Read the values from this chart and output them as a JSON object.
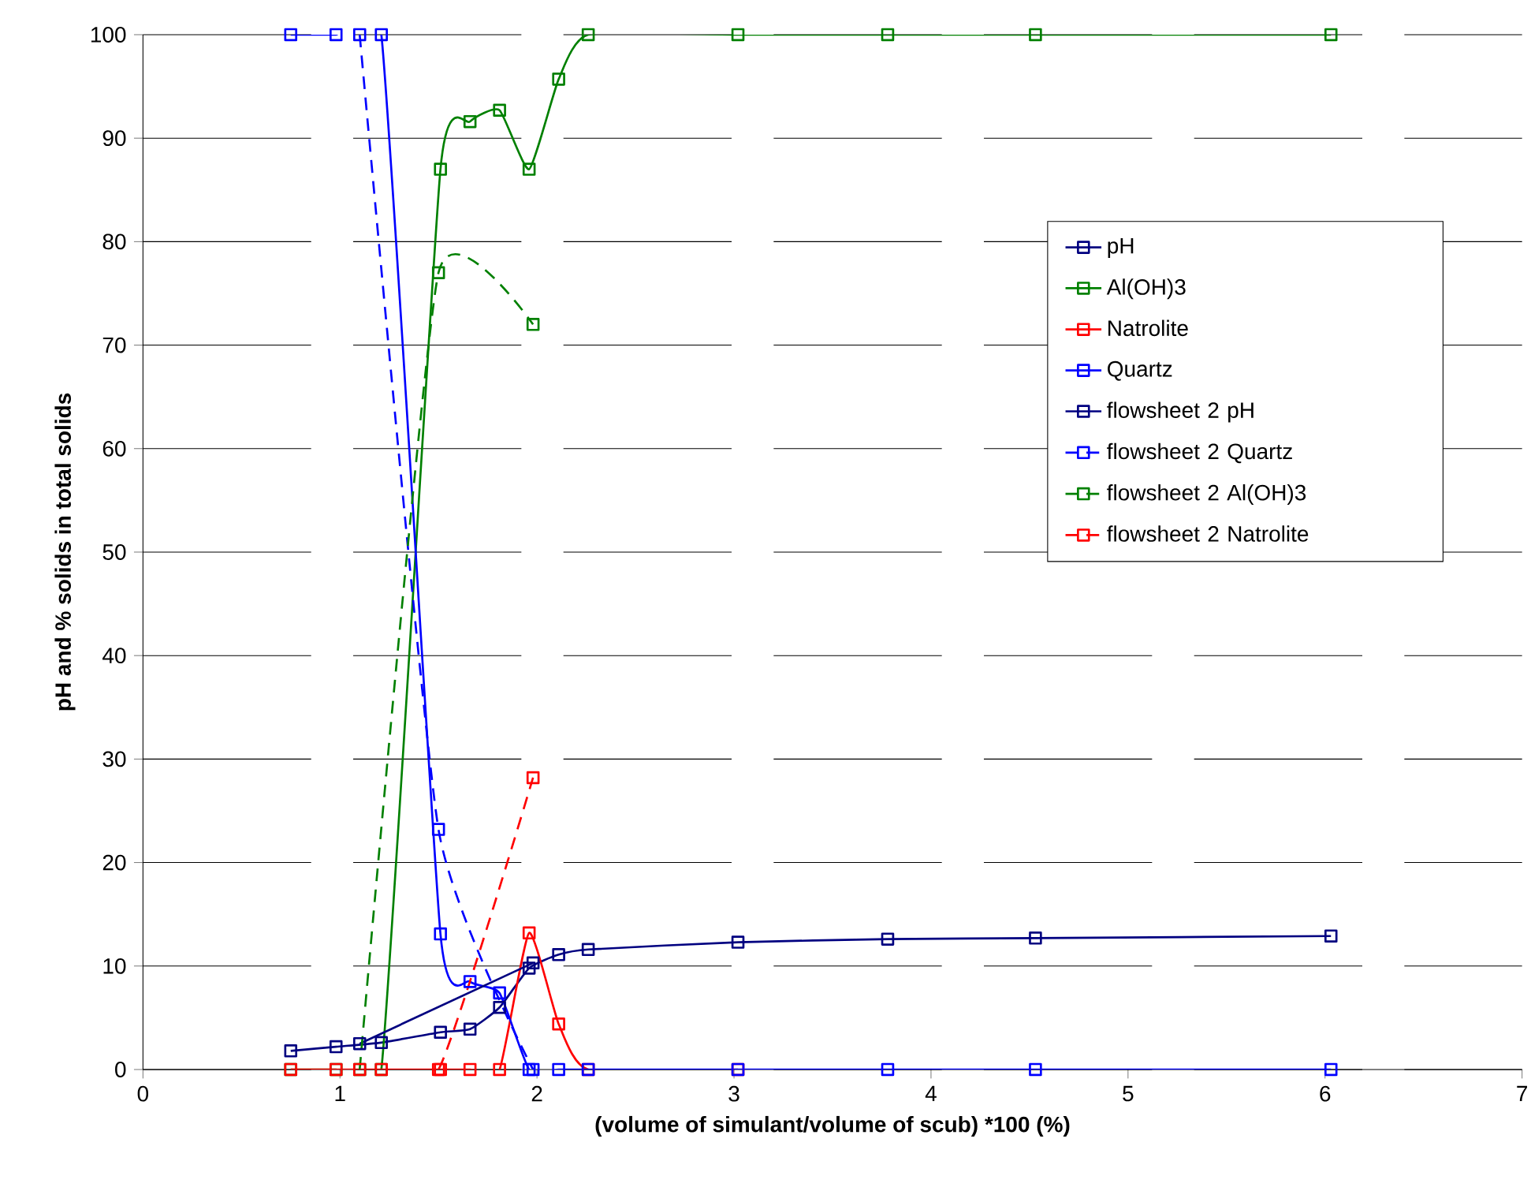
{
  "chart_data": {
    "type": "line",
    "xlabel": "(volume of simulant/volume of scub) *100 (%)",
    "ylabel": "pH and % solids in total solids",
    "xlim": [
      0,
      7
    ],
    "xticks": [
      0,
      1,
      2,
      3,
      4,
      5,
      6,
      7
    ],
    "ylim": [
      0,
      100
    ],
    "yticks": [
      0,
      10,
      20,
      30,
      40,
      50,
      60,
      70,
      80,
      90,
      100
    ],
    "grid": "y",
    "legend": "right",
    "marker": "square",
    "series": [
      {
        "name": "pH",
        "color": "#000080",
        "line_style": "solid",
        "x": [
          0.75,
          0.98,
          1.21,
          1.51,
          1.66,
          1.81,
          1.96,
          2.11,
          2.26,
          3.02,
          3.78,
          4.53,
          6.03
        ],
        "values": [
          1.8,
          2.2,
          2.6,
          3.6,
          3.9,
          6.0,
          9.8,
          11.1,
          11.6,
          12.3,
          12.6,
          12.7,
          12.9
        ]
      },
      {
        "name": "Al(OH)3",
        "color": "#008000",
        "line_style": "solid",
        "x": [
          0.75,
          0.98,
          1.21,
          1.51,
          1.66,
          1.81,
          1.96,
          2.11,
          2.26,
          3.02,
          3.78,
          4.53,
          6.03
        ],
        "values": [
          0,
          0,
          0,
          87,
          91.6,
          92.7,
          87,
          95.7,
          100,
          100,
          100,
          100,
          100
        ]
      },
      {
        "name": "Natrolite",
        "color": "#ff0000",
        "line_style": "solid",
        "x": [
          0.75,
          0.98,
          1.21,
          1.51,
          1.66,
          1.81,
          1.96,
          2.11,
          2.26,
          3.02
        ],
        "values": [
          0,
          0,
          0,
          0,
          0,
          0,
          13.2,
          4.4,
          0,
          0
        ]
      },
      {
        "name": "Quartz",
        "color": "#0000ff",
        "line_style": "solid",
        "x": [
          0.75,
          0.98,
          1.21,
          1.51,
          1.66,
          1.81,
          1.96,
          2.11,
          2.26,
          3.02,
          3.78,
          4.53,
          6.03
        ],
        "values": [
          100,
          100,
          100,
          13.1,
          8.5,
          7.4,
          0,
          0,
          0,
          0,
          0,
          0,
          0
        ]
      },
      {
        "name": "flowsheet 2 pH",
        "color": "#000080",
        "line_style": "solid",
        "x": [
          1.1,
          1.98
        ],
        "values": [
          2.5,
          10.3
        ]
      },
      {
        "name": "flowsheet 2 Quartz",
        "color": "#0000ff",
        "line_style": "dashed",
        "x": [
          1.1,
          1.5,
          1.98
        ],
        "values": [
          100,
          23.2,
          0
        ]
      },
      {
        "name": "flowsheet 2 Al(OH)3",
        "color": "#008000",
        "line_style": "dashed",
        "x": [
          1.1,
          1.5,
          1.98
        ],
        "values": [
          0,
          77,
          72
        ]
      },
      {
        "name": "flowsheet 2 Natrolite",
        "color": "#ff0000",
        "line_style": "dashed",
        "x": [
          1.1,
          1.5,
          1.98
        ],
        "values": [
          0,
          0,
          28.2
        ]
      }
    ]
  }
}
